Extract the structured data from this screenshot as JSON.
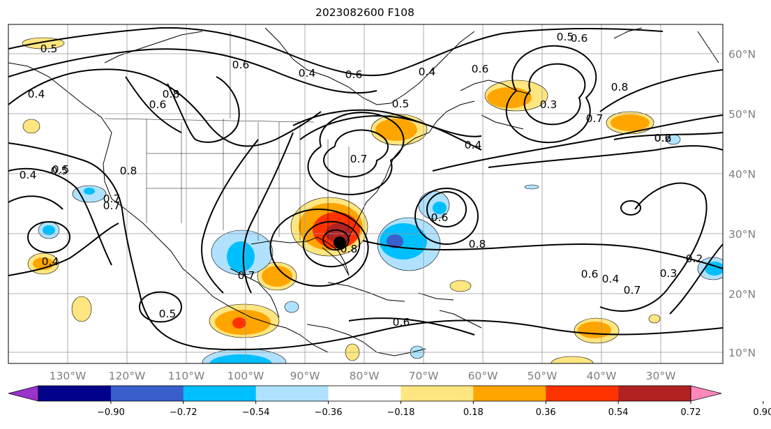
{
  "title": "2023082600 F108",
  "lon_labels": [
    "130°W",
    "120°W",
    "110°W",
    "100°W",
    "90°W",
    "80°W",
    "70°W",
    "60°W",
    "50°W",
    "40°W",
    "30°W"
  ],
  "lat_labels": [
    "60°N",
    "50°N",
    "40°N",
    "30°N",
    "20°N",
    "10°N"
  ],
  "colorbar": {
    "ticks": [
      "−0.90",
      "−0.72",
      "−0.54",
      "−0.36",
      "−0.18",
      "0.18",
      "0.36",
      "0.54",
      "0.72",
      "0.90"
    ],
    "colors": [
      "#9933cc",
      "#00008b",
      "#3a5fcd",
      "#00bfff",
      "#b0e2ff",
      "#ffffff",
      "#ffe680",
      "#ffa500",
      "#ff3300",
      "#b22222",
      "#ff88bb"
    ]
  },
  "contour_labels": [
    "0.6",
    "0.5",
    "0.4",
    "0.5",
    "0.4",
    "0.6",
    "0.8",
    "0.4",
    "0.5",
    "0.6",
    "0.7",
    "0.8",
    "0.7",
    "0.6",
    "0.8",
    "0.4",
    "0.5",
    "0.7",
    "0.6",
    "0.8",
    "0.6",
    "0.7",
    "0.4",
    "0.3",
    "0.2",
    "0.2",
    "0.3",
    "0.4",
    "0.7",
    "0.6",
    "0.4",
    "0.6",
    "0.8",
    "0.5",
    "0.7",
    "0.6",
    "0.5"
  ],
  "colors": {
    "coast": "#000000",
    "contour": "#000000",
    "grid": "#999999",
    "axis_label": "#7f7f7f"
  }
}
